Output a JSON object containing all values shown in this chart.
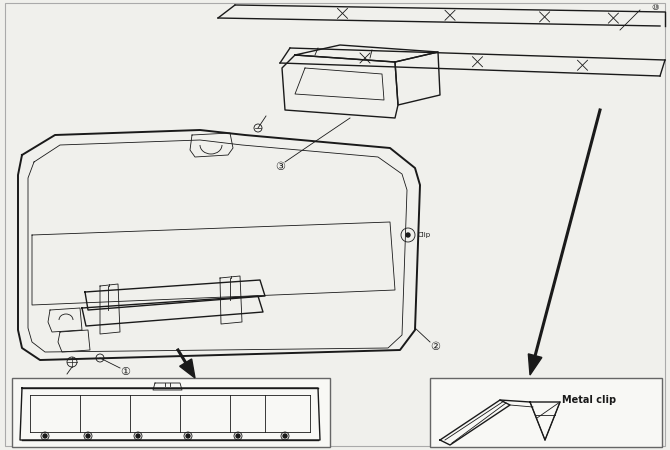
{
  "bg_color": "#f0f0ec",
  "line_color": "#1a1a1a",
  "white": "#ffffff",
  "metal_clip_label": "Metal clip",
  "gray_border": "#777777"
}
